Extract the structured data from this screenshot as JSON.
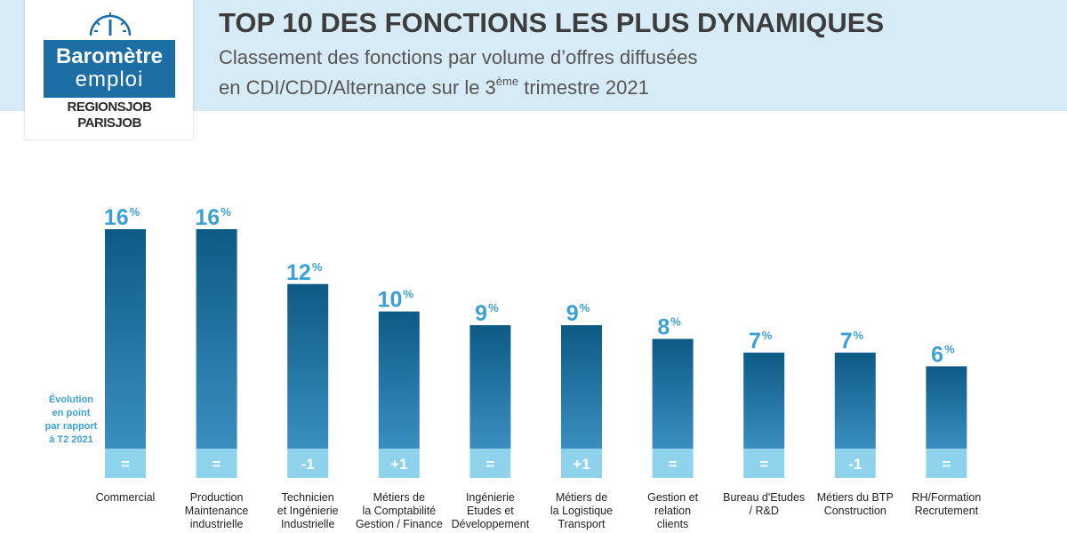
{
  "header": {
    "title": "TOP 10 DES FONCTIONS LES PLUS DYNAMIQUES",
    "subtitle_line1": "Classement des fonctions par volume d’offres diffusées",
    "subtitle_line2_pre": "en CDI/CDD/Alternance sur le 3",
    "subtitle_line2_sup": "ème",
    "subtitle_line2_post": " trimestre 2021"
  },
  "logo": {
    "line1": "Baromètre",
    "line2": "emploi",
    "brand1": "REGIONSJOB",
    "brand2": "PARISJOB",
    "icon": "gauge-icon"
  },
  "colors": {
    "bar_top": "#0d5a86",
    "bar_bottom": "#3a8fc0",
    "evo_box": "#8ed2ec",
    "value_label": "#3ba0d4",
    "header_band": "#d6ebf6",
    "logo_blue": "#1c6ea4"
  },
  "chart_data": {
    "type": "bar",
    "title": "TOP 10 DES FONCTIONS LES PLUS DYNAMIQUES",
    "ylabel": "",
    "xlabel": "",
    "ylim": [
      0,
      16
    ],
    "value_suffix": "%",
    "categories": [
      "Commercial",
      "Production\nMaintenance\nindustrielle",
      "Technicien\net Ingénierie\nIndustrielle",
      "Métiers de\nla Comptabilité\nGestion / Finance",
      "Ingénierie\nEtudes et\nDéveloppement",
      "Métiers de\nla Logistique\nTransport",
      "Gestion et\nrelation\nclients",
      "Bureau d'Etudes\n/ R&D",
      "Métiers du BTP\nConstruction",
      "RH/Formation\nRecrutement"
    ],
    "values": [
      16,
      16,
      12,
      10,
      9,
      9,
      8,
      7,
      7,
      6
    ],
    "evolution_label": "Évolution\nen point\npar rapport\nà T2 2021",
    "evolution": [
      "=",
      "=",
      "-1",
      "+1",
      "=",
      "+1",
      "=",
      "=",
      "-1",
      "="
    ]
  }
}
